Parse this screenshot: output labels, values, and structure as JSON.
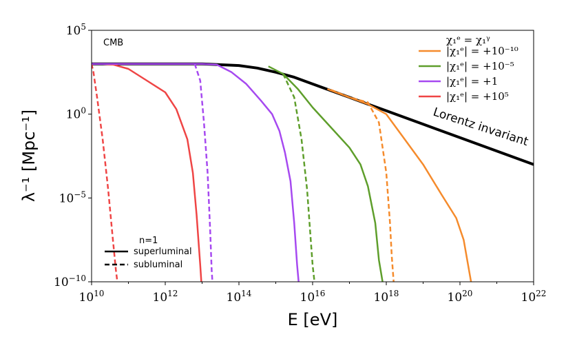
{
  "chart_data": {
    "type": "line",
    "xscale": "log",
    "yscale": "log",
    "xlim_exp": [
      10,
      22
    ],
    "ylim_exp": [
      -10,
      5
    ],
    "xlabel": "E [eV]",
    "ylabel": "λ⁻¹ [Mpc⁻¹]",
    "corner_label": "CMB",
    "x_ticks": [
      10,
      12,
      14,
      16,
      18,
      20,
      22
    ],
    "y_ticks": [
      -10,
      -5,
      0,
      5
    ],
    "annotation": "Lorentz invariant",
    "legend_title": "χ₁ᵉ = χ₁ᵞ",
    "legend": [
      {
        "label": "|χ₁ᵉ| = +10⁻¹⁰",
        "color": "#f58b2c"
      },
      {
        "label": "|χ₁ᵉ| = +10⁻⁵",
        "color": "#5e9e2b"
      },
      {
        "label": "|χ₁ᵉ| = +1",
        "color": "#a649f0"
      },
      {
        "label": "|χ₁ᵉ| = +10⁵",
        "color": "#ef4545"
      }
    ],
    "style_legend": {
      "title": "n=1",
      "items": [
        {
          "label": "superluminal",
          "dash": "solid"
        },
        {
          "label": "subluminal",
          "dash": "dashed"
        }
      ]
    },
    "series": [
      {
        "name": "Lorentz invariant",
        "color": "#000000",
        "dash": "solid",
        "width": 4,
        "x": [
          10,
          11,
          12,
          13,
          14,
          14.5,
          15,
          15.5,
          16,
          16.5,
          17,
          17.5,
          18,
          19,
          20,
          21,
          22
        ],
        "y": [
          3,
          3,
          3,
          3,
          2.9,
          2.75,
          2.5,
          2.2,
          1.8,
          1.4,
          1.0,
          0.6,
          0.2,
          -0.6,
          -1.4,
          -2.2,
          -3.0
        ]
      },
      {
        "name": "|χ₁ᵉ| = +10⁵ superluminal",
        "color": "#ef4545",
        "dash": "solid",
        "width": 2.5,
        "x": [
          10,
          10.3,
          10.6,
          11.0,
          11.5,
          12.0,
          12.3,
          12.6,
          12.75,
          12.85,
          12.95,
          12.98
        ],
        "y": [
          3,
          3,
          2.95,
          2.7,
          2.0,
          1.3,
          0.3,
          -1.5,
          -3.5,
          -6.0,
          -9.0,
          -10
        ]
      },
      {
        "name": "|χ₁ᵉ| = +10⁵ subluminal",
        "color": "#ef4545",
        "dash": "dashed",
        "width": 2.5,
        "x": [
          10,
          10.05,
          10.15,
          10.3,
          10.45,
          10.58,
          10.66,
          10.7
        ],
        "y": [
          3,
          2.5,
          1.0,
          -1.5,
          -4.5,
          -7.5,
          -9.3,
          -10
        ]
      },
      {
        "name": "|χ₁ᵉ| = +1 superluminal",
        "color": "#a649f0",
        "dash": "solid",
        "width": 2.5,
        "x": [
          10,
          13.0,
          13.4,
          13.8,
          14.2,
          14.6,
          14.9,
          15.1,
          15.25,
          15.4,
          15.5,
          15.58,
          15.62
        ],
        "y": [
          3,
          3,
          2.95,
          2.5,
          1.8,
          0.8,
          0.0,
          -1.0,
          -2.3,
          -4.0,
          -6.5,
          -9.0,
          -10
        ]
      },
      {
        "name": "|χ₁ᵉ| = +1 subluminal",
        "color": "#a649f0",
        "dash": "dashed",
        "width": 2.5,
        "x": [
          12.8,
          12.95,
          13.05,
          13.15,
          13.22,
          13.26,
          13.28
        ],
        "y": [
          3,
          2.0,
          -0.5,
          -3.5,
          -7.0,
          -9.3,
          -10
        ]
      },
      {
        "name": "|χ₁ᵉ| = +10⁻⁵ superluminal",
        "color": "#5e9e2b",
        "dash": "solid",
        "width": 2.5,
        "x": [
          14.8,
          15.2,
          15.6,
          16.0,
          16.5,
          17.0,
          17.3,
          17.5,
          17.7,
          17.8,
          17.9
        ],
        "y": [
          2.85,
          2.4,
          1.5,
          0.4,
          -0.8,
          -2.0,
          -3.0,
          -4.3,
          -6.5,
          -8.7,
          -10
        ]
      },
      {
        "name": "|χ₁ᵉ| = +10⁻⁵ subluminal",
        "color": "#5e9e2b",
        "dash": "dashed",
        "width": 2.5,
        "x": [
          15.2,
          15.5,
          15.7,
          15.85,
          15.95,
          16.0,
          16.05
        ],
        "y": [
          2.4,
          1.0,
          -1.5,
          -4.5,
          -7.5,
          -9.0,
          -10
        ]
      },
      {
        "name": "|χ₁ᵉ| = +10⁻¹⁰ superluminal",
        "color": "#f58b2c",
        "dash": "solid",
        "width": 2.5,
        "x": [
          16.4,
          17.0,
          17.5,
          18.0,
          18.5,
          19.0,
          19.5,
          19.9,
          20.1,
          20.3
        ],
        "y": [
          1.5,
          1.0,
          0.6,
          0.0,
          -1.5,
          -3.0,
          -4.8,
          -6.2,
          -7.5,
          -10
        ]
      },
      {
        "name": "|χ₁ᵉ| = +10⁻¹⁰ subluminal",
        "color": "#f58b2c",
        "dash": "dashed",
        "width": 2.5,
        "x": [
          16.5,
          17.0,
          17.5,
          17.8,
          18.0,
          18.1,
          18.15,
          18.2
        ],
        "y": [
          1.45,
          1.0,
          0.7,
          -0.5,
          -3.5,
          -6.5,
          -8.5,
          -10
        ]
      }
    ]
  }
}
